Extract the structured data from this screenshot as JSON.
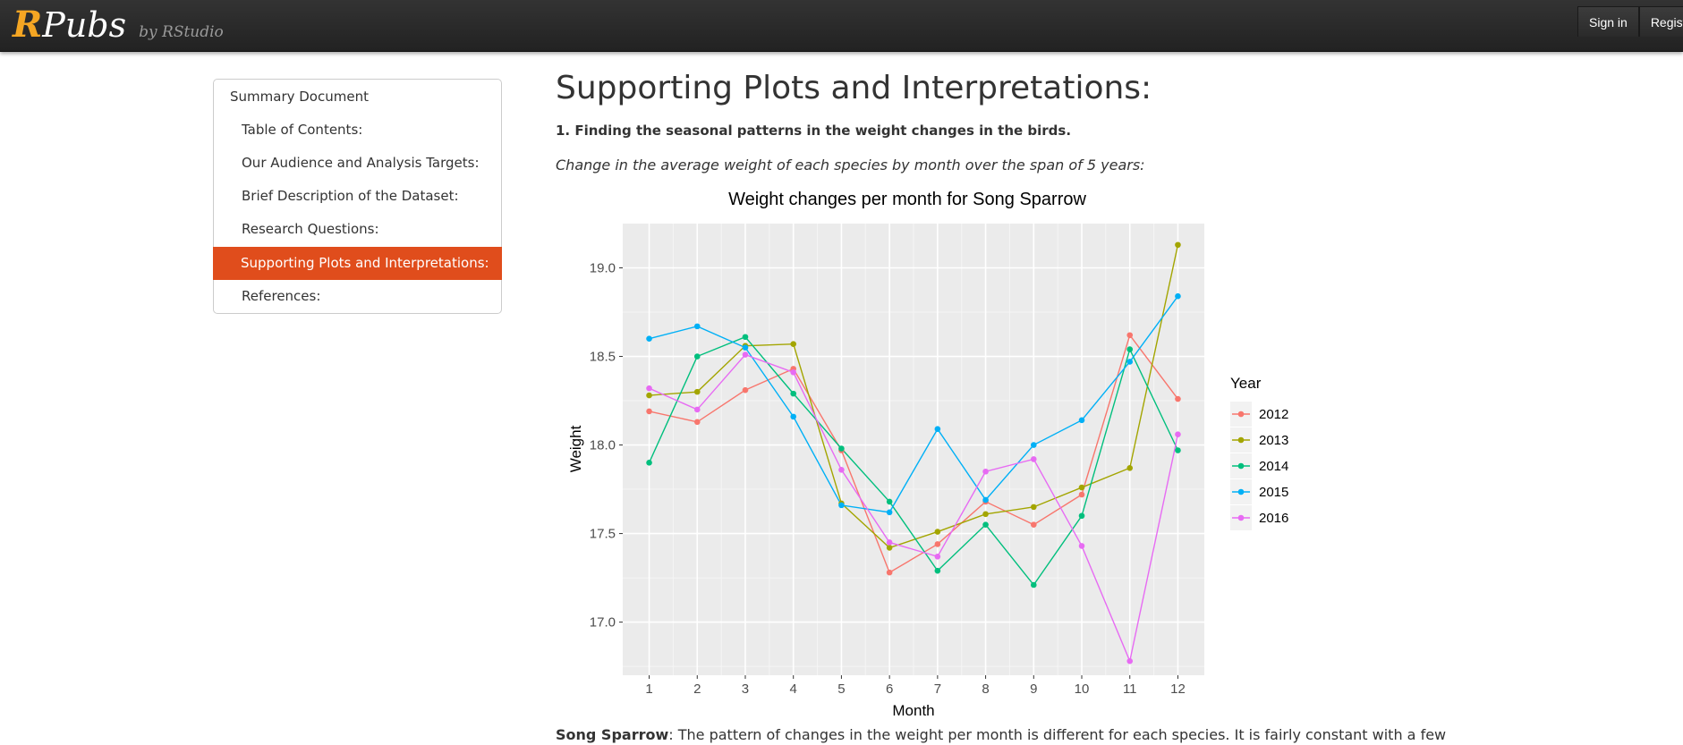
{
  "header": {
    "logo_r": "R",
    "logo_pubs": "Pubs",
    "logo_by": "by RStudio",
    "sign_in_label": "Sign in",
    "register_label": "Register"
  },
  "sidebar": {
    "title": "Summary Document",
    "items": [
      {
        "label": "Table of Contents:",
        "active": false
      },
      {
        "label": "Our Audience and Analysis Targets:",
        "active": false
      },
      {
        "label": "Brief Description of the Dataset:",
        "active": false
      },
      {
        "label": "Research Questions:",
        "active": false
      },
      {
        "label": "Supporting Plots and Interpretations:",
        "active": true
      },
      {
        "label": "References:",
        "active": false
      }
    ],
    "active_color": "#e04d1c"
  },
  "main": {
    "title": "Supporting Plots and Interpretations:",
    "section_heading": "1. Finding the seasonal patterns in the weight changes in the birds.",
    "section_caption": "Change in the average weight of each species by month over the span of 5 years:",
    "paragraph_bold": "Song Sparrow",
    "paragraph_text": ": The pattern of changes in the weight per month is different for each species. It is fairly constant with a few"
  },
  "chart_data": {
    "type": "line",
    "title": "Weight changes per month for Song Sparrow",
    "xlabel": "Month",
    "ylabel": "Weight",
    "x": [
      1,
      2,
      3,
      4,
      5,
      6,
      7,
      8,
      9,
      10,
      11,
      12
    ],
    "xticks": [
      "1",
      "2",
      "3",
      "4",
      "5",
      "6",
      "7",
      "8",
      "9",
      "10",
      "11",
      "12"
    ],
    "yticks": [
      17.0,
      17.5,
      18.0,
      18.5,
      19.0
    ],
    "ytick_labels": [
      "17.0",
      "17.5",
      "18.0",
      "18.5",
      "19.0"
    ],
    "ylim": [
      16.7,
      19.25
    ],
    "xlim": [
      0.45,
      12.55
    ],
    "grid": true,
    "legend_title": "Year",
    "legend_position": "right",
    "series": [
      {
        "name": "2012",
        "color": "#f8766d",
        "values": [
          18.19,
          18.13,
          18.31,
          18.43,
          17.97,
          17.28,
          17.44,
          17.68,
          17.55,
          17.72,
          18.62,
          18.26
        ]
      },
      {
        "name": "2013",
        "color": "#a3a500",
        "values": [
          18.28,
          18.3,
          18.56,
          18.57,
          17.67,
          17.42,
          17.51,
          17.61,
          17.65,
          17.76,
          17.87,
          19.13
        ]
      },
      {
        "name": "2014",
        "color": "#00bf7d",
        "values": [
          17.9,
          18.5,
          18.61,
          18.29,
          17.98,
          17.68,
          17.29,
          17.55,
          17.21,
          17.6,
          18.54,
          17.97
        ]
      },
      {
        "name": "2015",
        "color": "#00b0f6",
        "values": [
          18.6,
          18.67,
          18.55,
          18.16,
          17.66,
          17.62,
          18.09,
          17.69,
          18.0,
          18.14,
          18.47,
          18.84
        ]
      },
      {
        "name": "2016",
        "color": "#e76bf3",
        "values": [
          18.32,
          18.2,
          18.51,
          18.41,
          17.86,
          17.45,
          17.37,
          17.85,
          17.92,
          17.43,
          16.78,
          18.06
        ]
      }
    ]
  }
}
